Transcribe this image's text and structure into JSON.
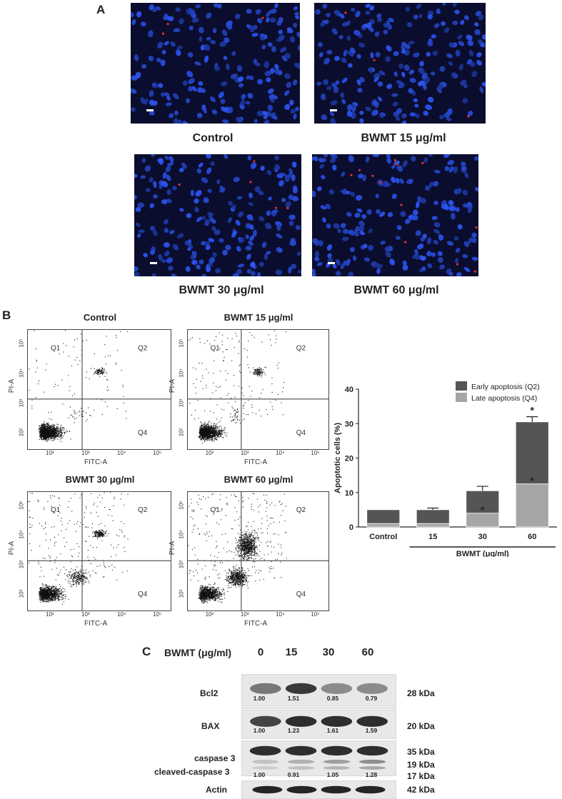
{
  "panel_a": {
    "letter": "A",
    "images": [
      {
        "caption": "Control"
      },
      {
        "caption": "BWMT 15 μg/ml"
      },
      {
        "caption": "BWMT 30 μg/ml"
      },
      {
        "caption": "BWMT 60 μg/ml"
      }
    ]
  },
  "panel_b": {
    "letter": "B",
    "flow_plots": [
      {
        "title": "Control"
      },
      {
        "title": "BWMT 15 μg/ml"
      },
      {
        "title": "BWMT 30 μg/ml"
      },
      {
        "title": "BWMT 60 μg/ml"
      }
    ],
    "quadrants": {
      "q1": "Q1",
      "q2": "Q2",
      "q4": "Q4"
    },
    "x_axis_label": "FITC-A",
    "y_axis_label": "PI-A",
    "x_ticks": [
      "10²",
      "10³",
      "10⁴",
      "10⁵"
    ],
    "y_ticks": [
      "10²",
      "10³",
      "10⁴",
      "10⁵"
    ]
  },
  "chart_data": {
    "type": "bar",
    "stacked": true,
    "categories": [
      "Control",
      "15",
      "30",
      "60"
    ],
    "series": [
      {
        "name": "Late apoptosis (Q4)",
        "values": [
          1.0,
          1.0,
          4.0,
          12.5
        ],
        "errors": [
          0,
          0,
          0.8,
          0.8
        ],
        "color": "#a6a6a6"
      },
      {
        "name": "Early apoptosis  (Q2)",
        "values": [
          4.0,
          4.0,
          6.5,
          18.0
        ],
        "errors": [
          0,
          0.5,
          1.3,
          1.5
        ],
        "color": "#555555"
      }
    ],
    "significance": [
      {
        "category": "30",
        "series": "Late apoptosis (Q4)",
        "mark": "*"
      },
      {
        "category": "60",
        "series": "Late apoptosis (Q4)",
        "mark": "*"
      },
      {
        "category": "60",
        "series": "Early apoptosis  (Q2)",
        "mark": "*"
      }
    ],
    "ylabel": "Apoptotic cells (%)",
    "xlabel": "BWMT (μg/ml)",
    "ylim": [
      0,
      40
    ],
    "yticks": [
      0,
      10,
      20,
      30,
      40
    ],
    "legend_position": "top-right"
  },
  "panel_c": {
    "letter": "C",
    "header_label": "BWMT (μg/ml)",
    "lanes": [
      "0",
      "15",
      "30",
      "60"
    ],
    "rows": [
      {
        "label": "Bcl2",
        "kda": "28 kDa",
        "values": [
          "1.00",
          "1.51",
          "0.85",
          "0.79"
        ]
      },
      {
        "label": "BAX",
        "kda": "20 kDa",
        "values": [
          "1.00",
          "1.23",
          "1.61",
          "1.59"
        ]
      },
      {
        "label": "caspase 3",
        "kda": "35 kDa"
      },
      {
        "label": "cleaved-caspase 3",
        "kda_a": "19 kDa",
        "kda_b": "17 kDa",
        "values": [
          "1.00",
          "0.91",
          "1.05",
          "1.28"
        ]
      },
      {
        "label": "Actin",
        "kda": "42 kDa"
      }
    ]
  }
}
